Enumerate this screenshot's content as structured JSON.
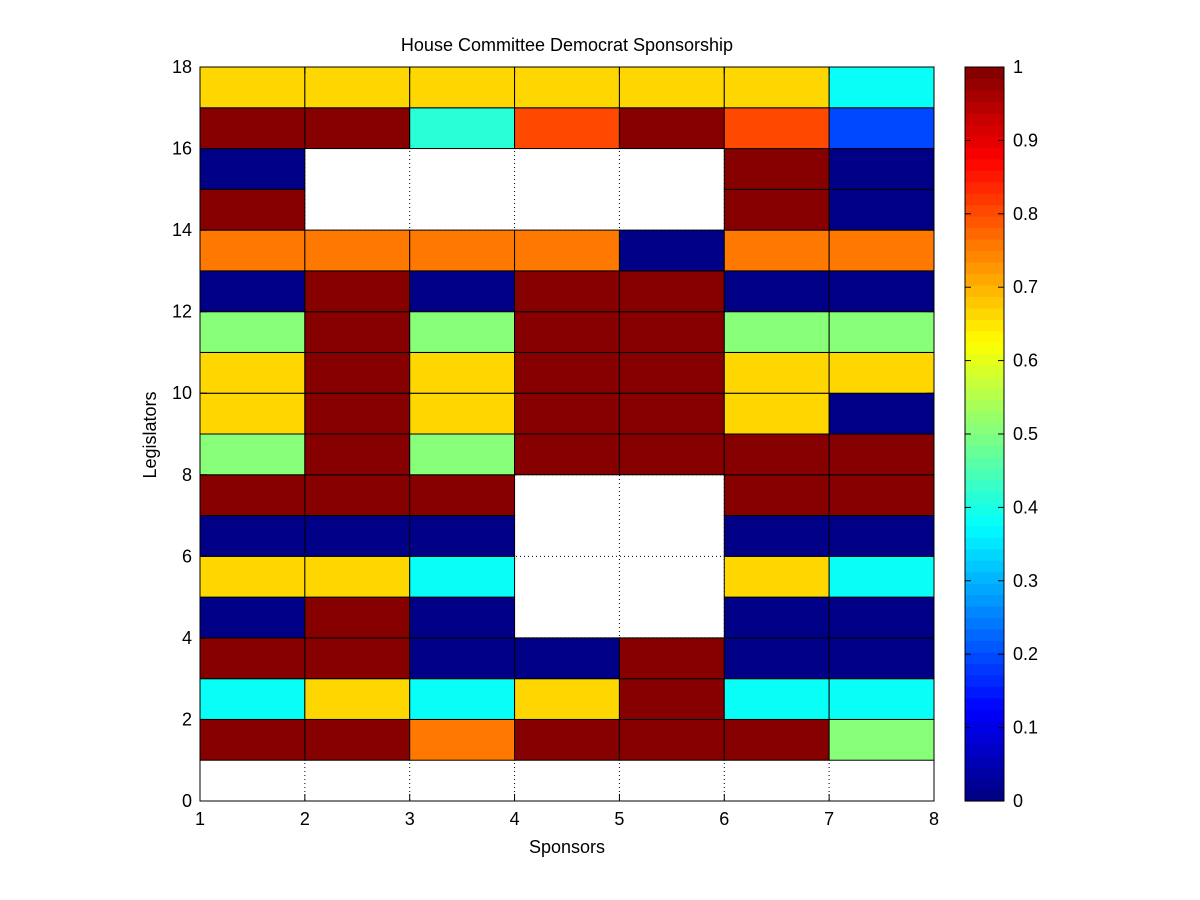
{
  "chart_data": {
    "type": "heatmap",
    "title": "House Committee Democrat Sponsorship",
    "xlabel": "Sponsors",
    "ylabel": "Legislators",
    "xlim": [
      1,
      8
    ],
    "ylim": [
      0,
      18
    ],
    "xticks": [
      "1",
      "2",
      "3",
      "4",
      "5",
      "6",
      "7",
      "8"
    ],
    "yticks": [
      "0",
      "2",
      "4",
      "6",
      "8",
      "10",
      "12",
      "14",
      "16",
      "18"
    ],
    "colorbar": {
      "range": [
        0,
        1
      ],
      "ticks": [
        "0",
        "0.1",
        "0.2",
        "0.3",
        "0.4",
        "0.5",
        "0.6",
        "0.7",
        "0.8",
        "0.9",
        "1"
      ],
      "colormap": "jet"
    },
    "grid": "dotted",
    "rows_bottom_to_top": [
      [
        null,
        null,
        null,
        null,
        null,
        null,
        null
      ],
      [
        1,
        1,
        0.75,
        1,
        1,
        1,
        0.5
      ],
      [
        0.375,
        0.667,
        0.375,
        0.667,
        1,
        0.375,
        0.375
      ],
      [
        1,
        1,
        0,
        0,
        1,
        0,
        0
      ],
      [
        0,
        1,
        0,
        null,
        null,
        0,
        0
      ],
      [
        0.667,
        0.667,
        0.375,
        null,
        null,
        0.667,
        0.375
      ],
      [
        0,
        0,
        0,
        null,
        null,
        0,
        0
      ],
      [
        1,
        1,
        1,
        null,
        null,
        1,
        1
      ],
      [
        0.5,
        1,
        0.5,
        1,
        1,
        1,
        1
      ],
      [
        0.667,
        1,
        0.667,
        1,
        1,
        0.667,
        0
      ],
      [
        0.667,
        1,
        0.667,
        1,
        1,
        0.667,
        0.667
      ],
      [
        0.5,
        1,
        0.5,
        1,
        1,
        0.5,
        0.5
      ],
      [
        0,
        1,
        0,
        1,
        1,
        0,
        0
      ],
      [
        0.75,
        0.75,
        0.75,
        0.75,
        0,
        0.75,
        0.75
      ],
      [
        1,
        null,
        null,
        null,
        null,
        1,
        0
      ],
      [
        0,
        null,
        null,
        null,
        null,
        1,
        0
      ],
      [
        1,
        1,
        0.42,
        0.8,
        1,
        0.8,
        0.2
      ],
      [
        0.667,
        0.667,
        0.667,
        0.667,
        0.667,
        0.667,
        0.375
      ]
    ]
  }
}
